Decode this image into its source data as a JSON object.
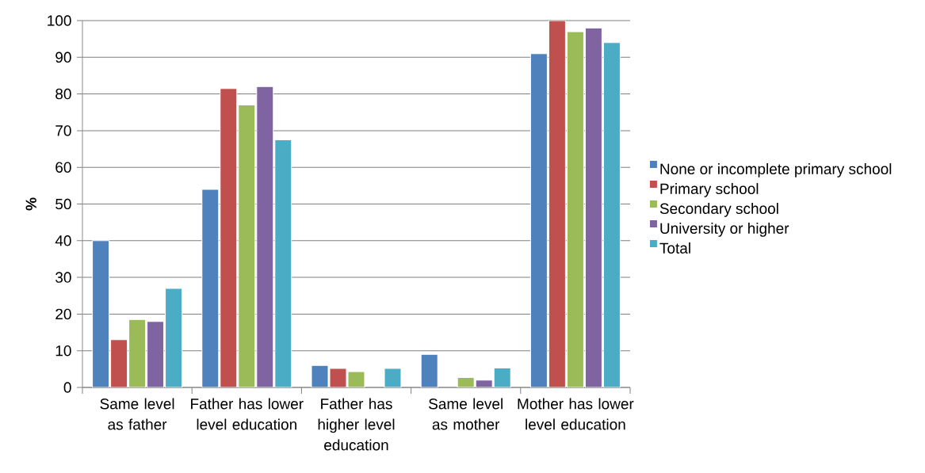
{
  "chart_data": {
    "type": "bar",
    "ylabel": "%",
    "categories": [
      "Same level as father",
      "Father has lower level education",
      "Father has higher level education",
      "Same level as mother",
      "Mother has lower level education"
    ],
    "series": [
      {
        "name": "None or incomplete primary school",
        "color": "#4f81bd",
        "values": [
          40,
          54,
          6,
          9,
          91
        ]
      },
      {
        "name": "Primary school",
        "color": "#c0504d",
        "values": [
          13,
          81.5,
          5.2,
          null,
          100
        ]
      },
      {
        "name": "Secondary school",
        "color": "#9bbb59",
        "values": [
          18.5,
          77,
          4.3,
          2.7,
          97
        ]
      },
      {
        "name": "University or higher",
        "color": "#8064a2",
        "values": [
          18,
          82,
          null,
          2,
          98
        ]
      },
      {
        "name": "Total",
        "color": "#4bacc6",
        "values": [
          27,
          67.5,
          5.2,
          5.3,
          94
        ]
      }
    ],
    "ylim": [
      0,
      100
    ],
    "yticks": [
      0,
      10,
      20,
      30,
      40,
      50,
      60,
      70,
      80,
      90,
      100
    ],
    "grid": "y",
    "legend": "right"
  }
}
